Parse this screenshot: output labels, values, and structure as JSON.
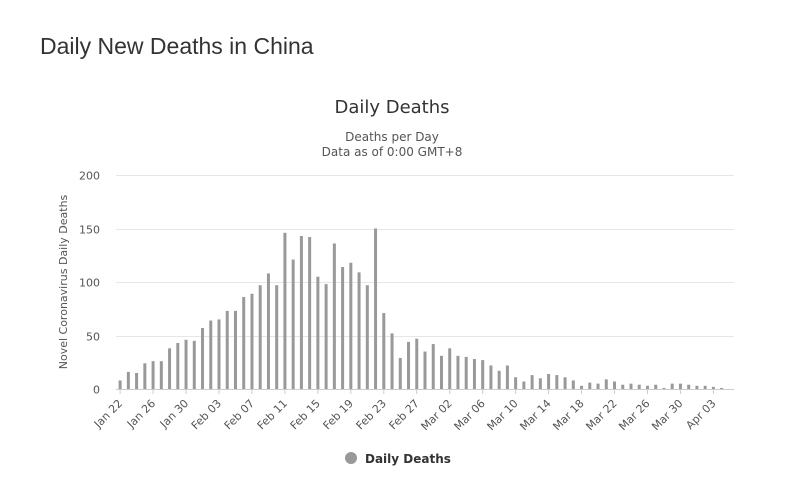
{
  "page": {
    "heading": "Daily New Deaths in China"
  },
  "chart_data": {
    "type": "bar",
    "title": "Daily Deaths",
    "subtitle_line1": "Deaths per Day",
    "subtitle_line2": "Data as of 0:00 GMT+8",
    "ylabel": "Novel Coronavirus Daily Deaths",
    "xlabel": "",
    "ylim": [
      0,
      200
    ],
    "yticks": [
      0,
      50,
      100,
      150,
      200
    ],
    "grid": true,
    "legend": {
      "label": "Daily Deaths",
      "position": "bottom-center"
    },
    "colors": {
      "bar": "#999999",
      "grid": "#e6e6e6",
      "axis": "#cccccc",
      "legend_marker": "#999999"
    },
    "x_tick_labels": [
      {
        "index": 0,
        "label": "Jan 22"
      },
      {
        "index": 4,
        "label": "Jan 26"
      },
      {
        "index": 8,
        "label": "Jan 30"
      },
      {
        "index": 12,
        "label": "Feb 03"
      },
      {
        "index": 16,
        "label": "Feb 07"
      },
      {
        "index": 20,
        "label": "Feb 11"
      },
      {
        "index": 24,
        "label": "Feb 15"
      },
      {
        "index": 28,
        "label": "Feb 19"
      },
      {
        "index": 32,
        "label": "Feb 23"
      },
      {
        "index": 36,
        "label": "Feb 27"
      },
      {
        "index": 40,
        "label": "Mar 02"
      },
      {
        "index": 44,
        "label": "Mar 06"
      },
      {
        "index": 48,
        "label": "Mar 10"
      },
      {
        "index": 52,
        "label": "Mar 14"
      },
      {
        "index": 56,
        "label": "Mar 18"
      },
      {
        "index": 60,
        "label": "Mar 22"
      },
      {
        "index": 64,
        "label": "Mar 26"
      },
      {
        "index": 68,
        "label": "Mar 30"
      },
      {
        "index": 72,
        "label": "Apr 03"
      }
    ],
    "categories": [
      "Jan 22",
      "Jan 23",
      "Jan 24",
      "Jan 25",
      "Jan 26",
      "Jan 27",
      "Jan 28",
      "Jan 29",
      "Jan 30",
      "Jan 31",
      "Feb 01",
      "Feb 02",
      "Feb 03",
      "Feb 04",
      "Feb 05",
      "Feb 06",
      "Feb 07",
      "Feb 08",
      "Feb 09",
      "Feb 10",
      "Feb 11",
      "Feb 12",
      "Feb 13",
      "Feb 14",
      "Feb 15",
      "Feb 16",
      "Feb 17",
      "Feb 18",
      "Feb 19",
      "Feb 20",
      "Feb 21",
      "Feb 22",
      "Feb 23",
      "Feb 24",
      "Feb 25",
      "Feb 26",
      "Feb 27",
      "Feb 28",
      "Feb 29",
      "Mar 01",
      "Mar 02",
      "Mar 03",
      "Mar 04",
      "Mar 05",
      "Mar 06",
      "Mar 07",
      "Mar 08",
      "Mar 09",
      "Mar 10",
      "Mar 11",
      "Mar 12",
      "Mar 13",
      "Mar 14",
      "Mar 15",
      "Mar 16",
      "Mar 17",
      "Mar 18",
      "Mar 19",
      "Mar 20",
      "Mar 21",
      "Mar 22",
      "Mar 23",
      "Mar 24",
      "Mar 25",
      "Mar 26",
      "Mar 27",
      "Mar 28",
      "Mar 29",
      "Mar 30",
      "Mar 31",
      "Apr 01",
      "Apr 02",
      "Apr 03",
      "Apr 04",
      "Apr 05"
    ],
    "values": [
      8,
      16,
      15,
      24,
      26,
      26,
      38,
      43,
      46,
      45,
      57,
      64,
      65,
      73,
      73,
      86,
      89,
      97,
      108,
      97,
      146,
      121,
      143,
      142,
      105,
      98,
      136,
      114,
      118,
      109,
      97,
      150,
      71,
      52,
      29,
      44,
      47,
      35,
      42,
      31,
      38,
      31,
      30,
      28,
      27,
      22,
      17,
      22,
      11,
      7,
      13,
      10,
      14,
      13,
      11,
      8,
      3,
      6,
      5,
      9,
      7,
      4,
      5,
      4,
      3,
      4,
      1,
      5,
      5,
      4,
      3,
      3,
      2,
      1,
      0
    ]
  }
}
